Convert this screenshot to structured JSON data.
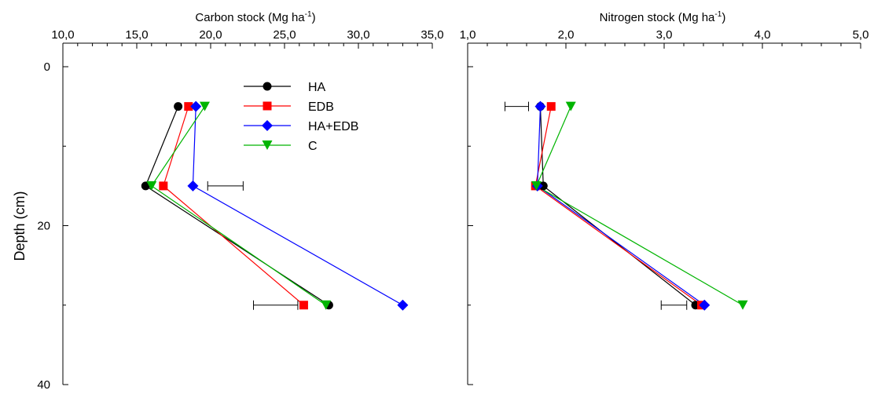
{
  "chart_data": [
    {
      "type": "line",
      "orientation": "depth-profile",
      "title": "",
      "xlabel": "Carbon stock (Mg ha⁻¹)",
      "xlabel_main": "Carbon stock (Mg ha",
      "xlabel_sup": "-1",
      "xlabel_end": ")",
      "ylabel": "Depth (cm)",
      "xlim": [
        10,
        35
      ],
      "ylim": [
        0,
        40
      ],
      "x_axis_position": "top",
      "y_inverted": true,
      "x_major_ticks": [
        10,
        15,
        20,
        25,
        30,
        35
      ],
      "x_tick_labels": [
        "10,0",
        "15,0",
        "20,0",
        "25,0",
        "30,0",
        "35,0"
      ],
      "y_major_ticks": [
        0,
        20,
        40
      ],
      "y_tick_labels": [
        "0",
        "20",
        "40"
      ],
      "legend": {
        "position": "top-right-inside",
        "entries": [
          "HA",
          "EDB",
          "HA+EDB",
          "C"
        ]
      },
      "grid": false,
      "series": [
        {
          "name": "HA",
          "color": "#000000",
          "marker": "circle",
          "points": [
            [
              17.8,
              5
            ],
            [
              15.6,
              15
            ],
            [
              28.0,
              30
            ]
          ]
        },
        {
          "name": "EDB",
          "color": "#ff0000",
          "marker": "square",
          "points": [
            [
              18.5,
              5
            ],
            [
              16.8,
              15
            ],
            [
              26.3,
              30
            ]
          ]
        },
        {
          "name": "HA+EDB",
          "color": "#0000ff",
          "marker": "diamond",
          "points": [
            [
              19.0,
              5
            ],
            [
              18.8,
              15
            ],
            [
              33.0,
              30
            ]
          ]
        },
        {
          "name": "C",
          "color": "#00b400",
          "marker": "triangle-down",
          "points": [
            [
              19.6,
              5
            ],
            [
              16.0,
              15
            ],
            [
              27.8,
              30
            ]
          ]
        }
      ],
      "error_bars": [
        {
          "center": 21.0,
          "halfwidth": 1.2,
          "depth": 15
        },
        {
          "center": 24.4,
          "halfwidth": 1.5,
          "depth": 30
        }
      ]
    },
    {
      "type": "line",
      "orientation": "depth-profile",
      "title": "",
      "xlabel": "Nitrogen stock (Mg ha⁻¹)",
      "xlabel_main": "Nitrogen stock (Mg ha",
      "xlabel_sup": "-1",
      "xlabel_end": ")",
      "ylabel": "",
      "xlim": [
        1,
        5
      ],
      "ylim": [
        0,
        40
      ],
      "x_axis_position": "top",
      "y_inverted": true,
      "x_major_ticks": [
        1,
        2,
        3,
        4,
        5
      ],
      "x_tick_labels": [
        "1,0",
        "2,0",
        "3,0",
        "4,0",
        "5,0"
      ],
      "legend": null,
      "grid": false,
      "series": [
        {
          "name": "HA",
          "color": "#000000",
          "marker": "circle",
          "points": [
            [
              1.74,
              5
            ],
            [
              1.77,
              15
            ],
            [
              3.32,
              30
            ]
          ]
        },
        {
          "name": "EDB",
          "color": "#ff0000",
          "marker": "square",
          "points": [
            [
              1.85,
              5
            ],
            [
              1.69,
              15
            ],
            [
              3.38,
              30
            ]
          ]
        },
        {
          "name": "HA+EDB",
          "color": "#0000ff",
          "marker": "diamond",
          "points": [
            [
              1.74,
              5
            ],
            [
              1.71,
              15
            ],
            [
              3.41,
              30
            ]
          ]
        },
        {
          "name": "C",
          "color": "#00b400",
          "marker": "triangle-down",
          "points": [
            [
              2.05,
              5
            ],
            [
              1.7,
              15
            ],
            [
              3.8,
              30
            ]
          ]
        }
      ],
      "error_bars": [
        {
          "center": 1.5,
          "halfwidth": 0.12,
          "depth": 5
        },
        {
          "center": 3.1,
          "halfwidth": 0.13,
          "depth": 30
        }
      ]
    }
  ]
}
